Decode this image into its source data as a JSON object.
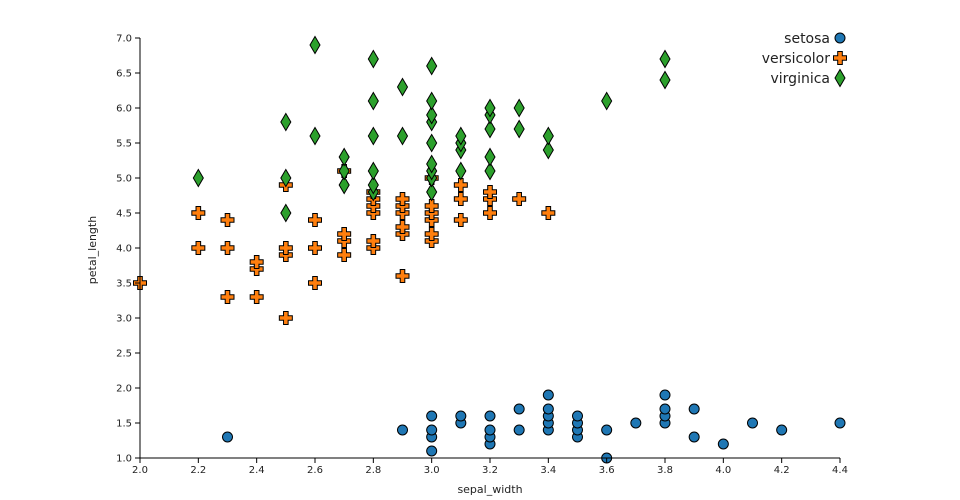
{
  "chart_data": {
    "type": "scatter",
    "title": "",
    "xlabel": "sepal_width",
    "ylabel": "petal_length",
    "xlim": [
      2.0,
      4.4
    ],
    "ylim": [
      1.0,
      7.0
    ],
    "xticks": [
      "2.0",
      "2.2",
      "2.4",
      "2.6",
      "2.8",
      "3.0",
      "3.2",
      "3.4",
      "3.6",
      "3.8",
      "4.0",
      "4.2",
      "4.4"
    ],
    "yticks": [
      "1.0",
      "1.5",
      "2.0",
      "2.5",
      "3.0",
      "3.5",
      "4.0",
      "4.5",
      "5.0",
      "5.5",
      "6.0",
      "6.5",
      "7.0"
    ],
    "grid": false,
    "legend_position": "top-right",
    "series": [
      {
        "name": "setosa",
        "color": "#1f77b4",
        "marker": "circle",
        "points": [
          [
            2.3,
            1.3
          ],
          [
            2.9,
            1.4
          ],
          [
            3.0,
            1.1
          ],
          [
            3.0,
            1.3
          ],
          [
            3.0,
            1.4
          ],
          [
            3.0,
            1.6
          ],
          [
            3.1,
            1.5
          ],
          [
            3.1,
            1.6
          ],
          [
            3.2,
            1.2
          ],
          [
            3.2,
            1.3
          ],
          [
            3.2,
            1.4
          ],
          [
            3.2,
            1.6
          ],
          [
            3.3,
            1.4
          ],
          [
            3.3,
            1.7
          ],
          [
            3.4,
            1.4
          ],
          [
            3.4,
            1.5
          ],
          [
            3.4,
            1.6
          ],
          [
            3.4,
            1.7
          ],
          [
            3.4,
            1.9
          ],
          [
            3.5,
            1.3
          ],
          [
            3.5,
            1.4
          ],
          [
            3.5,
            1.5
          ],
          [
            3.5,
            1.6
          ],
          [
            3.6,
            1.0
          ],
          [
            3.6,
            1.4
          ],
          [
            3.7,
            1.5
          ],
          [
            3.8,
            1.5
          ],
          [
            3.8,
            1.6
          ],
          [
            3.8,
            1.7
          ],
          [
            3.8,
            1.9
          ],
          [
            3.9,
            1.3
          ],
          [
            3.9,
            1.7
          ],
          [
            4.0,
            1.2
          ],
          [
            4.1,
            1.5
          ],
          [
            4.2,
            1.4
          ],
          [
            4.4,
            1.5
          ]
        ]
      },
      {
        "name": "versicolor",
        "color": "#ff7f0e",
        "marker": "cross",
        "points": [
          [
            2.0,
            3.5
          ],
          [
            2.2,
            4.0
          ],
          [
            2.2,
            4.5
          ],
          [
            2.3,
            3.3
          ],
          [
            2.3,
            4.0
          ],
          [
            2.3,
            4.4
          ],
          [
            2.4,
            3.3
          ],
          [
            2.4,
            3.7
          ],
          [
            2.4,
            3.8
          ],
          [
            2.5,
            3.0
          ],
          [
            2.5,
            3.9
          ],
          [
            2.5,
            4.0
          ],
          [
            2.5,
            4.9
          ],
          [
            2.6,
            3.5
          ],
          [
            2.6,
            4.0
          ],
          [
            2.6,
            4.4
          ],
          [
            2.7,
            3.9
          ],
          [
            2.7,
            4.1
          ],
          [
            2.7,
            4.2
          ],
          [
            2.7,
            5.1
          ],
          [
            2.8,
            4.0
          ],
          [
            2.8,
            4.1
          ],
          [
            2.8,
            4.5
          ],
          [
            2.8,
            4.6
          ],
          [
            2.8,
            4.7
          ],
          [
            2.8,
            4.8
          ],
          [
            2.9,
            3.6
          ],
          [
            2.9,
            4.2
          ],
          [
            2.9,
            4.3
          ],
          [
            2.9,
            4.5
          ],
          [
            2.9,
            4.6
          ],
          [
            2.9,
            4.7
          ],
          [
            3.0,
            4.1
          ],
          [
            3.0,
            4.2
          ],
          [
            3.0,
            4.4
          ],
          [
            3.0,
            4.5
          ],
          [
            3.0,
            4.6
          ],
          [
            3.0,
            5.0
          ],
          [
            3.1,
            4.4
          ],
          [
            3.1,
            4.7
          ],
          [
            3.1,
            4.9
          ],
          [
            3.2,
            4.5
          ],
          [
            3.2,
            4.7
          ],
          [
            3.2,
            4.8
          ],
          [
            3.3,
            4.7
          ],
          [
            3.4,
            4.5
          ]
        ]
      },
      {
        "name": "virginica",
        "color": "#2ca02c",
        "marker": "diamond",
        "points": [
          [
            2.2,
            5.0
          ],
          [
            2.5,
            4.5
          ],
          [
            2.5,
            5.0
          ],
          [
            2.5,
            5.8
          ],
          [
            2.6,
            5.6
          ],
          [
            2.6,
            6.9
          ],
          [
            2.7,
            4.9
          ],
          [
            2.7,
            5.1
          ],
          [
            2.7,
            5.3
          ],
          [
            2.8,
            4.8
          ],
          [
            2.8,
            4.9
          ],
          [
            2.8,
            5.1
          ],
          [
            2.8,
            5.6
          ],
          [
            2.8,
            6.1
          ],
          [
            2.8,
            6.7
          ],
          [
            2.9,
            5.6
          ],
          [
            2.9,
            6.3
          ],
          [
            3.0,
            4.8
          ],
          [
            3.0,
            5.0
          ],
          [
            3.0,
            5.1
          ],
          [
            3.0,
            5.2
          ],
          [
            3.0,
            5.5
          ],
          [
            3.0,
            5.8
          ],
          [
            3.0,
            5.9
          ],
          [
            3.0,
            6.1
          ],
          [
            3.0,
            6.6
          ],
          [
            3.1,
            5.1
          ],
          [
            3.1,
            5.4
          ],
          [
            3.1,
            5.5
          ],
          [
            3.1,
            5.6
          ],
          [
            3.2,
            5.1
          ],
          [
            3.2,
            5.3
          ],
          [
            3.2,
            5.7
          ],
          [
            3.2,
            5.9
          ],
          [
            3.2,
            6.0
          ],
          [
            3.3,
            5.7
          ],
          [
            3.3,
            6.0
          ],
          [
            3.4,
            5.4
          ],
          [
            3.4,
            5.6
          ],
          [
            3.6,
            6.1
          ],
          [
            3.8,
            6.4
          ],
          [
            3.8,
            6.7
          ]
        ]
      }
    ]
  }
}
